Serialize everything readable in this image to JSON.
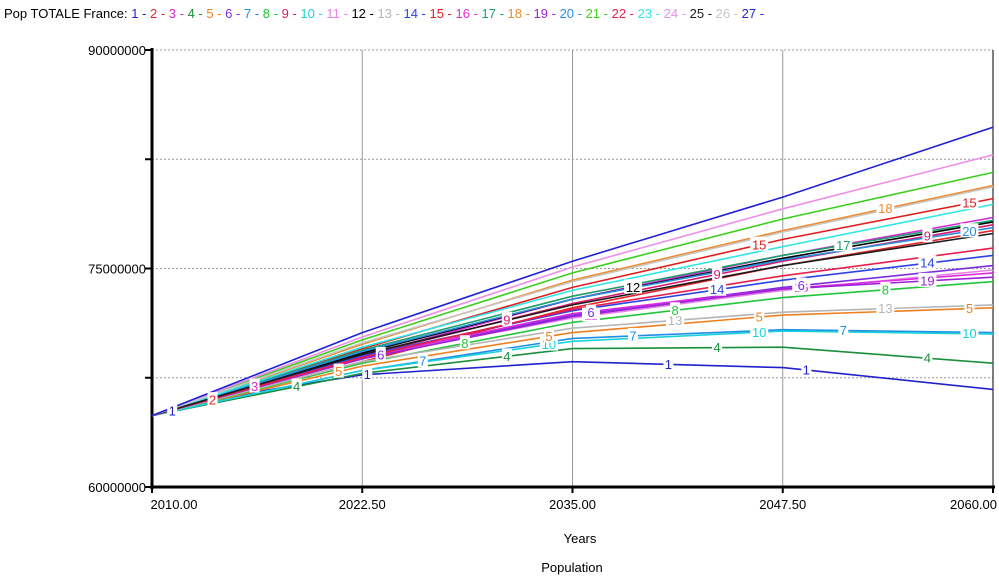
{
  "chart_data": {
    "type": "line",
    "title": "Pop TOTALE France:",
    "xlabel": "Years",
    "subtitle": "Population",
    "xlim": [
      2010,
      2060
    ],
    "ylim": [
      60000000,
      90000000
    ],
    "x_ticks": [
      "2010.00",
      "2022.50",
      "2035.00",
      "2047.50",
      "2060.00"
    ],
    "y_ticks": [
      "90000000",
      "75000000",
      "60000000"
    ],
    "grid": true,
    "legend": "top",
    "series": [
      {
        "name": "1",
        "color": "#2222cc",
        "points": [
          [
            2010,
            64900000
          ],
          [
            2016,
            66500000
          ],
          [
            2022.5,
            67700000
          ],
          [
            2035,
            68600000
          ],
          [
            2047.5,
            68200000
          ],
          [
            2060,
            66700000
          ]
        ]
      },
      {
        "name": "2",
        "color": "#e6262b",
        "points": [
          [
            2010,
            64900000
          ],
          [
            2022.5,
            68600000
          ],
          [
            2035,
            72300000
          ],
          [
            2047.5,
            75200000
          ],
          [
            2060,
            77600000
          ]
        ]
      },
      {
        "name": "3",
        "color": "#d42ad4",
        "points": [
          [
            2010,
            64900000
          ],
          [
            2022.5,
            69000000
          ],
          [
            2035,
            72900000
          ],
          [
            2047.5,
            75900000
          ],
          [
            2060,
            78500000
          ]
        ]
      },
      {
        "name": "4",
        "color": "#1a8f3c",
        "points": [
          [
            2010,
            64900000
          ],
          [
            2022.5,
            67800000
          ],
          [
            2035,
            69500000
          ],
          [
            2047.5,
            69600000
          ],
          [
            2060,
            68500000
          ]
        ]
      },
      {
        "name": "5",
        "color": "#f07f1e",
        "points": [
          [
            2010,
            64900000
          ],
          [
            2022.5,
            68300000
          ],
          [
            2035,
            70600000
          ],
          [
            2047.5,
            71800000
          ],
          [
            2060,
            72300000
          ]
        ]
      },
      {
        "name": "6",
        "color": "#7a2ce0",
        "points": [
          [
            2010,
            64900000
          ],
          [
            2022.5,
            68800000
          ],
          [
            2035,
            71800000
          ],
          [
            2047.5,
            73700000
          ],
          [
            2060,
            75200000
          ]
        ]
      },
      {
        "name": "7",
        "color": "#1f8ee6",
        "points": [
          [
            2010,
            64900000
          ],
          [
            2022.5,
            68000000
          ],
          [
            2035,
            70200000
          ],
          [
            2047.5,
            70800000
          ],
          [
            2060,
            70600000
          ]
        ]
      },
      {
        "name": "8",
        "color": "#22c63a",
        "points": [
          [
            2010,
            64900000
          ],
          [
            2022.5,
            68500000
          ],
          [
            2035,
            71300000
          ],
          [
            2047.5,
            73000000
          ],
          [
            2060,
            74100000
          ]
        ]
      },
      {
        "name": "9",
        "color": "#d61b6e",
        "points": [
          [
            2010,
            64900000
          ],
          [
            2022.5,
            69000000
          ],
          [
            2035,
            72600000
          ],
          [
            2047.5,
            75500000
          ],
          [
            2060,
            78000000
          ]
        ]
      },
      {
        "name": "10",
        "color": "#19d3d9",
        "points": [
          [
            2010,
            64900000
          ],
          [
            2022.5,
            68000000
          ],
          [
            2035,
            70000000
          ],
          [
            2047.5,
            70700000
          ],
          [
            2060,
            70500000
          ]
        ]
      },
      {
        "name": "11",
        "color": "#e682e6",
        "points": [
          [
            2010,
            64900000
          ],
          [
            2022.5,
            68900000
          ],
          [
            2035,
            71600000
          ],
          [
            2047.5,
            73500000
          ],
          [
            2060,
            74900000
          ]
        ]
      },
      {
        "name": "12",
        "color": "#000000",
        "points": [
          [
            2010,
            64900000
          ],
          [
            2022.5,
            69200000
          ],
          [
            2035,
            72900000
          ],
          [
            2047.5,
            75700000
          ],
          [
            2060,
            78200000
          ]
        ]
      },
      {
        "name": "13",
        "color": "#b5b5b5",
        "points": [
          [
            2010,
            64900000
          ],
          [
            2022.5,
            68600000
          ],
          [
            2035,
            70900000
          ],
          [
            2047.5,
            72000000
          ],
          [
            2060,
            72500000
          ]
        ]
      },
      {
        "name": "14",
        "color": "#2d43e8",
        "points": [
          [
            2010,
            64900000
          ],
          [
            2022.5,
            69000000
          ],
          [
            2035,
            72100000
          ],
          [
            2047.5,
            74200000
          ],
          [
            2060,
            75900000
          ]
        ]
      },
      {
        "name": "15",
        "color": "#e31d1d",
        "points": [
          [
            2010,
            64900000
          ],
          [
            2022.5,
            69500000
          ],
          [
            2035,
            73700000
          ],
          [
            2047.5,
            77000000
          ],
          [
            2060,
            79800000
          ]
        ]
      },
      {
        "name": "16",
        "color": "#e02adf",
        "points": [
          [
            2010,
            64900000
          ],
          [
            2022.5,
            68900000
          ],
          [
            2035,
            71900000
          ],
          [
            2047.5,
            73600000
          ],
          [
            2060,
            74700000
          ]
        ]
      },
      {
        "name": "17",
        "color": "#1c9f6c",
        "points": [
          [
            2010,
            64900000
          ],
          [
            2022.5,
            69400000
          ],
          [
            2035,
            73100000
          ],
          [
            2047.5,
            75900000
          ],
          [
            2060,
            78300000
          ]
        ]
      },
      {
        "name": "18",
        "color": "#f08a2c",
        "points": [
          [
            2010,
            64900000
          ],
          [
            2022.5,
            69800000
          ],
          [
            2035,
            74200000
          ],
          [
            2047.5,
            77600000
          ],
          [
            2060,
            80700000
          ]
        ]
      },
      {
        "name": "19",
        "color": "#9b23d6",
        "points": [
          [
            2010,
            64900000
          ],
          [
            2022.5,
            68800000
          ],
          [
            2035,
            71700000
          ],
          [
            2047.5,
            73600000
          ],
          [
            2060,
            74400000
          ]
        ]
      },
      {
        "name": "20",
        "color": "#2a8fe0",
        "points": [
          [
            2010,
            64900000
          ],
          [
            2022.5,
            69300000
          ],
          [
            2035,
            72900000
          ],
          [
            2047.5,
            75600000
          ],
          [
            2060,
            77800000
          ]
        ]
      },
      {
        "name": "21",
        "color": "#3ccf1f",
        "points": [
          [
            2010,
            64900000
          ],
          [
            2022.5,
            70100000
          ],
          [
            2035,
            74700000
          ],
          [
            2047.5,
            78400000
          ],
          [
            2060,
            81600000
          ]
        ]
      },
      {
        "name": "22",
        "color": "#ea1c4c",
        "points": [
          [
            2010,
            64900000
          ],
          [
            2022.5,
            68900000
          ],
          [
            2035,
            72200000
          ],
          [
            2047.5,
            74500000
          ],
          [
            2060,
            76400000
          ]
        ]
      },
      {
        "name": "23",
        "color": "#2fe6e6",
        "points": [
          [
            2010,
            64900000
          ],
          [
            2022.5,
            69600000
          ],
          [
            2035,
            73500000
          ],
          [
            2047.5,
            76500000
          ],
          [
            2060,
            79400000
          ]
        ]
      },
      {
        "name": "24",
        "color": "#ee8ee8",
        "points": [
          [
            2010,
            64900000
          ],
          [
            2022.5,
            70300000
          ],
          [
            2035,
            75100000
          ],
          [
            2047.5,
            79100000
          ],
          [
            2060,
            82800000
          ]
        ]
      },
      {
        "name": "25",
        "color": "#1b1b1b",
        "points": [
          [
            2010,
            64900000
          ],
          [
            2022.5,
            69100000
          ],
          [
            2035,
            72500000
          ],
          [
            2047.5,
            75200000
          ],
          [
            2060,
            77400000
          ]
        ]
      },
      {
        "name": "26",
        "color": "#c6c6c6",
        "points": [
          [
            2010,
            64900000
          ],
          [
            2022.5,
            69900000
          ],
          [
            2035,
            74100000
          ],
          [
            2047.5,
            77500000
          ],
          [
            2060,
            80600000
          ]
        ]
      },
      {
        "name": "27",
        "color": "#2020d8",
        "points": [
          [
            2010,
            64900000
          ],
          [
            2022.5,
            70600000
          ],
          [
            2035,
            75500000
          ],
          [
            2047.5,
            79900000
          ],
          [
            2060,
            84700000
          ]
        ]
      }
    ],
    "markers": [
      {
        "label": "1",
        "series": "1",
        "x": 2011.2
      },
      {
        "label": "2",
        "series": "2",
        "x": 2013.6
      },
      {
        "label": "3",
        "series": "3",
        "x": 2016.1
      },
      {
        "label": "4",
        "series": "4",
        "x": 2018.6
      },
      {
        "label": "5",
        "series": "5",
        "x": 2021.1
      },
      {
        "label": "6",
        "series": "6",
        "x": 2023.6
      },
      {
        "label": "7",
        "series": "7",
        "x": 2026.1
      },
      {
        "label": "8",
        "series": "8",
        "x": 2028.6
      },
      {
        "label": "9",
        "series": "9",
        "x": 2031.1
      },
      {
        "label": "10",
        "series": "10",
        "x": 2033.6
      },
      {
        "label": "11",
        "series": "11",
        "x": 2036.1
      },
      {
        "label": "12",
        "series": "12",
        "x": 2038.6
      },
      {
        "label": "13",
        "series": "13",
        "x": 2041.1
      },
      {
        "label": "14",
        "series": "14",
        "x": 2043.6
      },
      {
        "label": "15",
        "series": "15",
        "x": 2046.1
      },
      {
        "label": "16",
        "series": "16",
        "x": 2048.6
      },
      {
        "label": "17",
        "series": "17",
        "x": 2051.1
      },
      {
        "label": "18",
        "series": "18",
        "x": 2053.6
      },
      {
        "label": "19",
        "series": "19",
        "x": 2056.1
      },
      {
        "label": "20",
        "series": "20",
        "x": 2058.6
      },
      {
        "label": "1",
        "series": "1",
        "x": 2022.8
      },
      {
        "label": "1",
        "series": "1",
        "x": 2040.7
      },
      {
        "label": "1",
        "series": "1",
        "x": 2048.9
      },
      {
        "label": "4",
        "series": "4",
        "x": 2031.1
      },
      {
        "label": "4",
        "series": "4",
        "x": 2043.6
      },
      {
        "label": "4",
        "series": "4",
        "x": 2056.1
      },
      {
        "label": "5",
        "series": "5",
        "x": 2033.6
      },
      {
        "label": "5",
        "series": "5",
        "x": 2046.1
      },
      {
        "label": "5",
        "series": "5",
        "x": 2058.6
      },
      {
        "label": "6",
        "series": "6",
        "x": 2036.1
      },
      {
        "label": "6",
        "series": "6",
        "x": 2048.6
      },
      {
        "label": "7",
        "series": "7",
        "x": 2038.6
      },
      {
        "label": "7",
        "series": "7",
        "x": 2051.1
      },
      {
        "label": "8",
        "series": "8",
        "x": 2041.1
      },
      {
        "label": "8",
        "series": "8",
        "x": 2053.6
      },
      {
        "label": "9",
        "series": "9",
        "x": 2043.6
      },
      {
        "label": "9",
        "series": "9",
        "x": 2056.1
      },
      {
        "label": "10",
        "series": "10",
        "x": 2046.1
      },
      {
        "label": "10",
        "series": "10",
        "x": 2058.6
      },
      {
        "label": "13",
        "series": "13",
        "x": 2053.6
      },
      {
        "label": "14",
        "series": "14",
        "x": 2056.1
      },
      {
        "label": "15",
        "series": "15",
        "x": 2058.6
      }
    ]
  }
}
